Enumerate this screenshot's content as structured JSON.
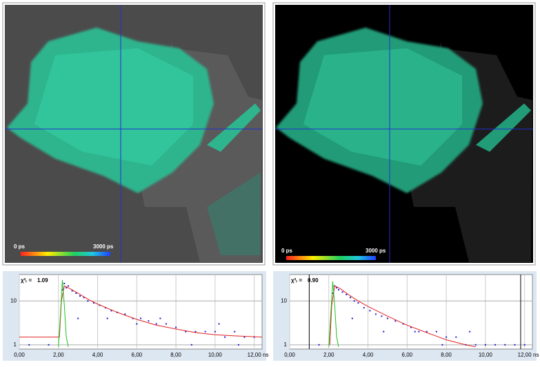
{
  "images": [
    {
      "colorbar_labels": [
        "0 ps",
        "3000 ps"
      ]
    },
    {
      "colorbar_labels": [
        "0 ps",
        "3000 ps"
      ]
    }
  ],
  "chart_data": [
    {
      "type": "scatter",
      "annotation_label": "χ²ᵣ =",
      "annotation_value": "1.09",
      "x_unit": "ns",
      "xlim": [
        0,
        12.4
      ],
      "ylim": [
        0.8,
        40
      ],
      "log_y": true,
      "grid": true,
      "xticks": [
        {
          "value": 0,
          "label": "0,00"
        },
        {
          "value": 2,
          "label": "2,00"
        },
        {
          "value": 4,
          "label": "4,00"
        },
        {
          "value": 6,
          "label": "6,00"
        },
        {
          "value": 8,
          "label": "8,00"
        },
        {
          "value": 10,
          "label": "10,00"
        },
        {
          "value": 12,
          "label": "12,00"
        }
      ],
      "yticks": [
        1,
        10
      ],
      "series": [
        {
          "style": "points",
          "color": "#1a1acc",
          "x": [
            2.2,
            2.3,
            2.4,
            2.5,
            2.7,
            2.9,
            3.1,
            3.3,
            3.5,
            3.8,
            4.1,
            4.4,
            4.7,
            5.0,
            5.4,
            5.8,
            6.2,
            6.6,
            7.0,
            7.5,
            8.0,
            8.5,
            9.0,
            9.5,
            10.0,
            10.5,
            11.0,
            11.5,
            12.0,
            0.5,
            1.5,
            3.0,
            4.5,
            6.0,
            7.2,
            8.8,
            10.2,
            11.2
          ],
          "values": [
            18,
            25,
            20,
            22,
            17,
            15,
            13,
            12,
            10,
            9,
            8,
            7,
            6,
            5.5,
            5,
            4,
            4,
            3.5,
            3,
            3,
            2.5,
            2,
            2,
            2,
            2,
            1.5,
            2,
            1.5,
            1.5,
            1,
            1,
            4,
            4,
            3,
            4,
            1,
            3,
            1
          ]
        },
        {
          "style": "line",
          "color": "#e02020",
          "x": [
            0,
            2.05,
            2.15,
            2.3,
            2.6,
            3,
            3.5,
            4,
            5,
            6,
            7,
            8,
            9,
            10,
            11,
            12.4
          ],
          "values": [
            1.5,
            1.5,
            10,
            22,
            19,
            15,
            11,
            8.5,
            5.5,
            3.8,
            2.8,
            2.3,
            1.9,
            1.7,
            1.6,
            1.5
          ]
        },
        {
          "style": "line",
          "color": "#20c020",
          "x": [
            2.0,
            2.1,
            2.2,
            2.3,
            2.4,
            2.5
          ],
          "values": [
            0.9,
            5,
            30,
            8,
            1.5,
            0.9
          ]
        }
      ]
    },
    {
      "type": "scatter",
      "annotation_label": "χ²ᵣ =",
      "annotation_value": "0.90",
      "x_unit": "ns",
      "xlim": [
        0,
        12.4
      ],
      "ylim": [
        0.8,
        40
      ],
      "log_y": true,
      "grid": true,
      "fit_range": [
        1.0,
        11.8
      ],
      "xticks": [
        {
          "value": 0,
          "label": "0,00"
        },
        {
          "value": 2,
          "label": "2,00"
        },
        {
          "value": 4,
          "label": "4,00"
        },
        {
          "value": 6,
          "label": "6,00"
        },
        {
          "value": 8,
          "label": "8,00"
        },
        {
          "value": 10,
          "label": "10,00"
        },
        {
          "value": 12,
          "label": "12,00"
        }
      ],
      "yticks": [
        1,
        10
      ],
      "series": [
        {
          "style": "points",
          "color": "#1a1acc",
          "x": [
            2.2,
            2.3,
            2.4,
            2.5,
            2.7,
            2.9,
            3.1,
            3.3,
            3.5,
            3.8,
            4.1,
            4.4,
            4.7,
            5.0,
            5.4,
            5.8,
            6.2,
            6.6,
            7.0,
            7.5,
            8.0,
            8.5,
            9.0,
            9.5,
            10.0,
            10.5,
            11.0,
            11.5,
            12.0,
            1.5,
            3.2,
            4.8,
            6.4,
            7.8,
            9.2
          ],
          "values": [
            15,
            22,
            20,
            18,
            16,
            14,
            12,
            10,
            9,
            7,
            6,
            5,
            4.5,
            4,
            3.5,
            3,
            2.5,
            2,
            2,
            2,
            1.5,
            1.5,
            1,
            1,
            1,
            1,
            1,
            1,
            1,
            1,
            4,
            2,
            2,
            1,
            2
          ]
        },
        {
          "style": "line",
          "color": "#e02020",
          "x": [
            2.05,
            2.15,
            2.3,
            2.6,
            3,
            3.5,
            4,
            5,
            6,
            7,
            8,
            9,
            9.5
          ],
          "values": [
            1,
            8,
            22,
            19,
            14,
            10,
            7.5,
            4.5,
            2.8,
            1.9,
            1.3,
            1,
            0.9
          ]
        },
        {
          "style": "line",
          "color": "#20c020",
          "x": [
            2.0,
            2.1,
            2.2,
            2.3,
            2.4,
            2.5
          ],
          "values": [
            0.9,
            5,
            28,
            8,
            1.5,
            0.9
          ]
        }
      ]
    }
  ]
}
